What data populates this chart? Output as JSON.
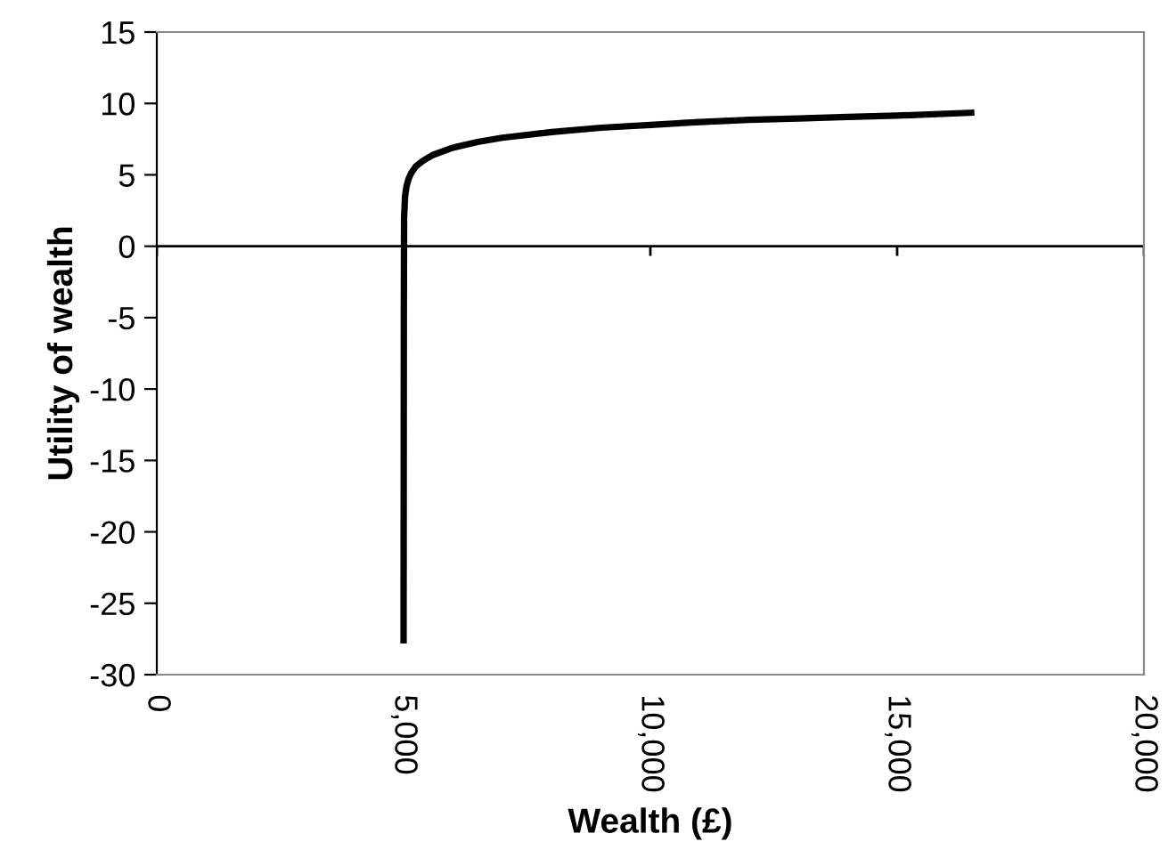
{
  "chart_data": {
    "type": "line",
    "xlabel": "Wealth (£)",
    "ylabel": "Utility of wealth",
    "x": [
      5000,
      5005,
      5010,
      5030,
      5060,
      5100,
      5150,
      5250,
      5400,
      5600,
      6000,
      6500,
      7000,
      8000,
      9000,
      10000,
      11000,
      12000,
      13000,
      14000,
      15000,
      16500
    ],
    "series": [
      {
        "color": "#000000",
        "values": [
          -27.6,
          -5,
          2,
          3.5,
          4.2,
          4.7,
          5.1,
          5.6,
          6.0,
          6.4,
          6.9,
          7.3,
          7.6,
          8.0,
          8.3,
          8.5,
          8.7,
          8.85,
          8.95,
          9.05,
          9.15,
          9.35
        ]
      }
    ],
    "xlim": [
      0,
      20000
    ],
    "ylim": [
      -30,
      15
    ],
    "xticks": [
      {
        "value": 0,
        "label": "0"
      },
      {
        "value": 5000,
        "label": "5,000"
      },
      {
        "value": 10000,
        "label": "10,000"
      },
      {
        "value": 15000,
        "label": "15,000"
      },
      {
        "value": 20000,
        "label": "20,000"
      }
    ],
    "yticks": [
      -30,
      -25,
      -20,
      -15,
      -10,
      -5,
      0,
      5,
      10,
      15
    ],
    "ref_lines": [
      {
        "axis": "y",
        "value": 0,
        "color": "#000000"
      }
    ],
    "grid": false,
    "legend": false,
    "marker": "none",
    "line_style": "solid"
  }
}
